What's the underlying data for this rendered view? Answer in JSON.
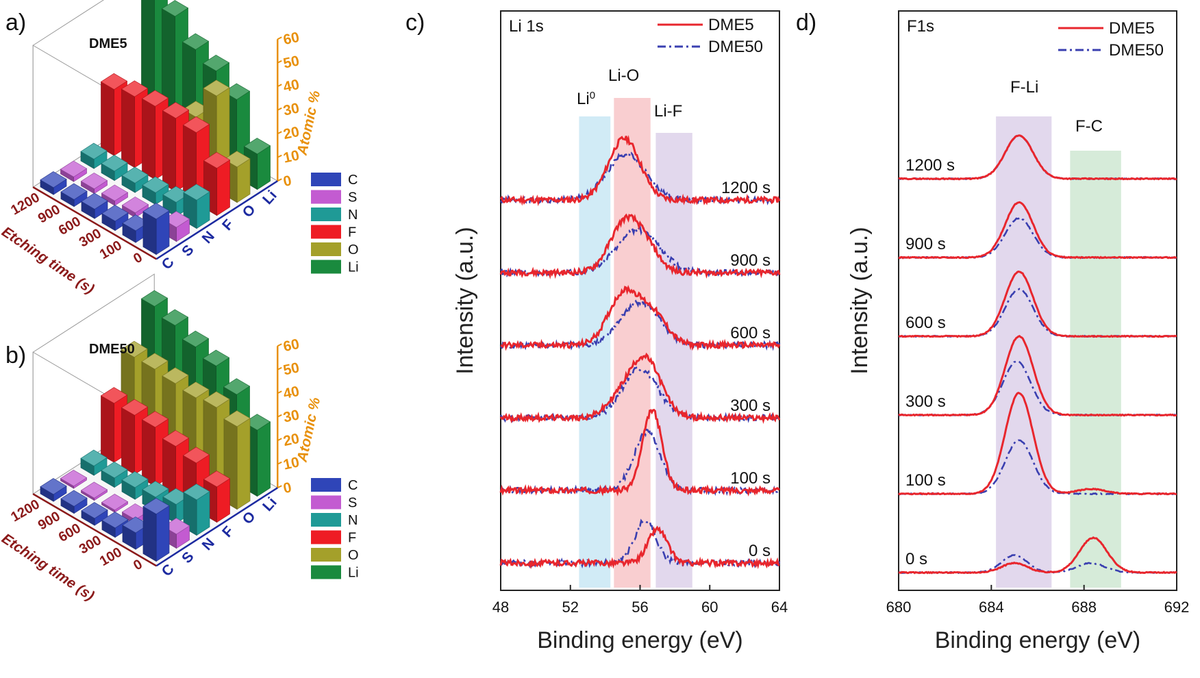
{
  "panels": {
    "a": "a)",
    "b": "b)",
    "c": "c)",
    "d": "d)"
  },
  "colors": {
    "dme5": "#e8262d",
    "dme50": "#3a3fb0",
    "C": "#2f45b8",
    "S": "#c35bd1",
    "N": "#1f9a96",
    "F": "#ee1c24",
    "O": "#a4a02a",
    "Li": "#1a8a3e",
    "band_li0": "#c9e7f5",
    "band_lio": "#f8c6c8",
    "band_lif": "#ddd1ea",
    "band_ff": "#ddd1ea",
    "band_fc": "#cfe8d2"
  },
  "chart_data": [
    {
      "id": "a",
      "type": "bar3d",
      "title": "DME5",
      "elements": [
        "C",
        "S",
        "N",
        "F",
        "O",
        "Li"
      ],
      "etching_times": [
        "0",
        "100",
        "300",
        "600",
        "900",
        "1200"
      ],
      "zlabel": "Atomic %",
      "ylabel": "Etching time (s)",
      "zticks": [
        "0",
        "10",
        "20",
        "30",
        "40",
        "50",
        "60"
      ],
      "zlim": [
        0,
        60
      ],
      "values": {
        "C": [
          15,
          5,
          4,
          4,
          3,
          3
        ],
        "S": [
          6,
          3,
          2,
          2,
          2,
          2
        ],
        "N": [
          12,
          6,
          5,
          4,
          4,
          4
        ],
        "F": [
          20,
          30,
          31,
          31,
          30,
          28
        ],
        "O": [
          15,
          40,
          26,
          18,
          14,
          13
        ],
        "Li": [
          15,
          33,
          40,
          44,
          53,
          56
        ]
      }
    },
    {
      "id": "b",
      "type": "bar3d",
      "title": "DME50",
      "elements": [
        "C",
        "S",
        "N",
        "F",
        "O",
        "Li"
      ],
      "etching_times": [
        "0",
        "100",
        "300",
        "600",
        "900",
        "1200"
      ],
      "zlabel": "Atomic %",
      "ylabel": "Etching time (s)",
      "zticks": [
        "0",
        "10",
        "20",
        "30",
        "40",
        "50",
        "60"
      ],
      "zlim": [
        0,
        60
      ],
      "values": {
        "C": [
          20,
          7,
          4,
          3,
          3,
          3
        ],
        "S": [
          6,
          2,
          2,
          1,
          1,
          1
        ],
        "N": [
          15,
          8,
          6,
          5,
          4,
          4
        ],
        "F": [
          15,
          20,
          22,
          25,
          25,
          25
        ],
        "O": [
          35,
          38,
          37,
          38,
          39,
          39
        ],
        "Li": [
          28,
          38,
          45,
          48,
          52,
          55
        ]
      }
    },
    {
      "id": "c",
      "type": "line",
      "title": "Li 1s",
      "xlabel": "Binding energy (eV)",
      "ylabel": "Intensity (a.u.)",
      "xlim": [
        48,
        64
      ],
      "xticks": [
        "48",
        "52",
        "56",
        "60",
        "64"
      ],
      "legend": [
        "DME5",
        "DME50"
      ],
      "bands": [
        {
          "label": "Li",
          "sup": "0",
          "from": 52.5,
          "to": 54.3
        },
        {
          "label": "Li-O",
          "from": 54.5,
          "to": 56.6
        },
        {
          "label": "Li-F",
          "from": 56.9,
          "to": 59.0
        }
      ],
      "times": [
        "1200 s",
        "900 s",
        "600 s",
        "300 s",
        "100 s",
        "0 s"
      ],
      "series": {
        "DME5": [
          {
            "offset": 5,
            "peaks": [
              [
                55.1,
                1.0,
                0.9
              ]
            ]
          },
          {
            "offset": 4,
            "peaks": [
              [
                55.2,
                0.85,
                0.9
              ],
              [
                56.5,
                0.25,
                0.7
              ]
            ]
          },
          {
            "offset": 3,
            "peaks": [
              [
                55.1,
                0.85,
                0.9
              ],
              [
                56.8,
                0.45,
                0.8
              ]
            ]
          },
          {
            "offset": 2,
            "peaks": [
              [
                56.3,
                0.95,
                0.9
              ],
              [
                54.8,
                0.25,
                0.8
              ]
            ]
          },
          {
            "offset": 1,
            "peaks": [
              [
                56.7,
                1.3,
                0.55
              ]
            ]
          },
          {
            "offset": 0,
            "peaks": [
              [
                57.0,
                0.55,
                0.55
              ]
            ]
          }
        ],
        "DME50": [
          {
            "offset": 5,
            "peaks": [
              [
                55.2,
                0.75,
                1.1
              ]
            ]
          },
          {
            "offset": 4,
            "peaks": [
              [
                55.9,
                0.7,
                1.2
              ]
            ]
          },
          {
            "offset": 3,
            "peaks": [
              [
                56.0,
                0.7,
                1.1
              ]
            ]
          },
          {
            "offset": 2,
            "peaks": [
              [
                56.0,
                0.8,
                1.0
              ]
            ]
          },
          {
            "offset": 1,
            "peaks": [
              [
                56.4,
                0.95,
                0.75
              ]
            ]
          },
          {
            "offset": 0,
            "peaks": [
              [
                56.3,
                0.7,
                0.6
              ]
            ]
          }
        ]
      }
    },
    {
      "id": "d",
      "type": "line",
      "title": "F1s",
      "xlabel": "Binding energy (eV)",
      "ylabel": "Intensity (a.u.)",
      "xlim": [
        680,
        692
      ],
      "xticks": [
        "680",
        "684",
        "688",
        "692"
      ],
      "legend": [
        "DME5",
        "DME50"
      ],
      "bands": [
        {
          "label": "F-Li",
          "from": 684.2,
          "to": 686.6
        },
        {
          "label": "F-C",
          "from": 687.4,
          "to": 689.6
        }
      ],
      "times": [
        "1200 s",
        "900 s",
        "600 s",
        "300 s",
        "100 s",
        "0 s"
      ],
      "series": {
        "DME5": [
          {
            "offset": 5,
            "peaks": [
              [
                685.2,
                0.55,
                0.6
              ]
            ]
          },
          {
            "offset": 4,
            "peaks": [
              [
                685.2,
                0.7,
                0.6
              ]
            ]
          },
          {
            "offset": 3,
            "peaks": [
              [
                685.2,
                0.82,
                0.6
              ]
            ]
          },
          {
            "offset": 2,
            "peaks": [
              [
                685.2,
                1.0,
                0.6
              ]
            ]
          },
          {
            "offset": 1,
            "peaks": [
              [
                685.2,
                1.28,
                0.6
              ],
              [
                688.3,
                0.06,
                0.6
              ]
            ]
          },
          {
            "offset": 0,
            "peaks": [
              [
                685.0,
                0.12,
                0.55
              ],
              [
                688.4,
                0.44,
                0.6
              ]
            ]
          }
        ],
        "DME50": [
          {
            "offset": 5,
            "peaks": [
              [
                685.2,
                0.55,
                0.6
              ]
            ]
          },
          {
            "offset": 4,
            "peaks": [
              [
                685.2,
                0.5,
                0.6
              ]
            ]
          },
          {
            "offset": 3,
            "peaks": [
              [
                685.2,
                0.6,
                0.6
              ]
            ]
          },
          {
            "offset": 2,
            "peaks": [
              [
                685.1,
                0.68,
                0.6
              ]
            ]
          },
          {
            "offset": 1,
            "peaks": [
              [
                685.2,
                0.68,
                0.6
              ]
            ]
          },
          {
            "offset": 0,
            "peaks": [
              [
                685.0,
                0.22,
                0.55
              ],
              [
                688.3,
                0.12,
                0.6
              ]
            ]
          }
        ]
      }
    }
  ]
}
